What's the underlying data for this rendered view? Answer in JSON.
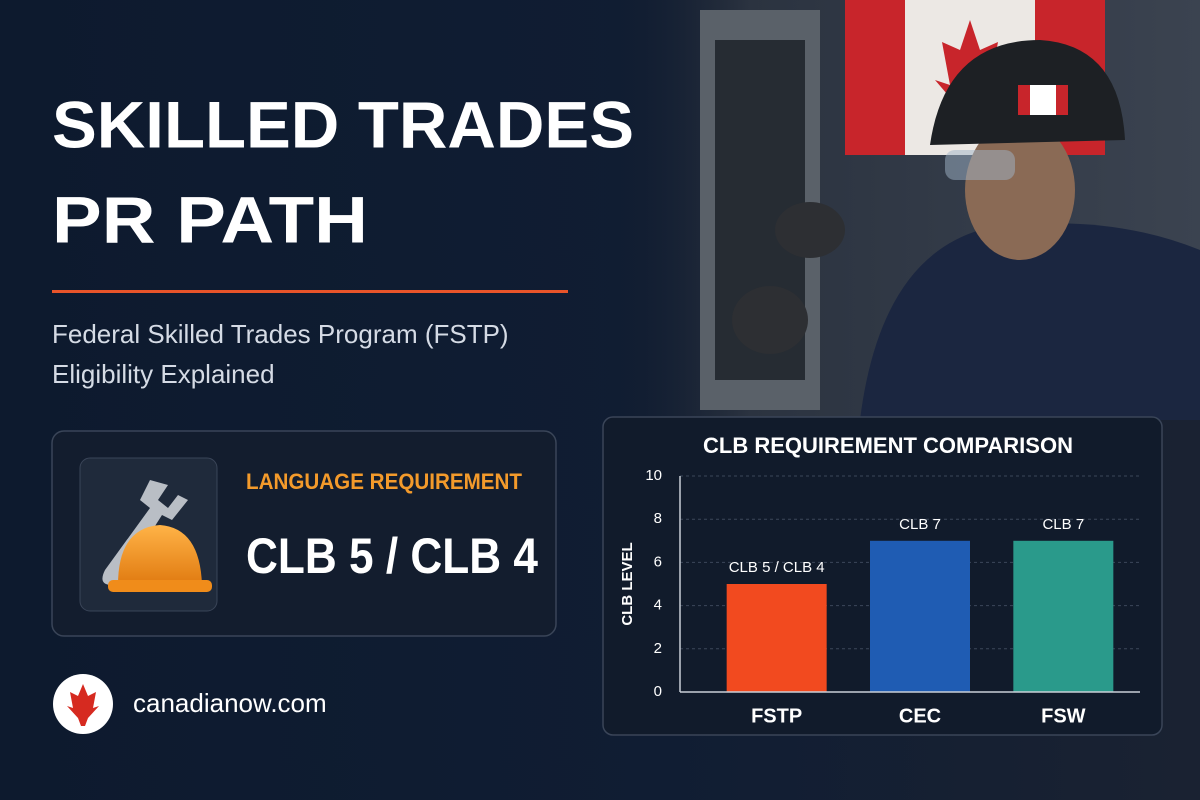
{
  "header": {
    "title_lines": [
      "SKILLED TRADES",
      "PR PATH"
    ],
    "subtitle_lines": [
      "Federal Skilled Trades Program (FSTP)",
      "Eligibility Explained"
    ]
  },
  "requirement_card": {
    "label": "LANGUAGE REQUIREMENT",
    "value": "CLB 5 / CLB 4"
  },
  "website": "canadianow.com",
  "chart_data": {
    "type": "bar",
    "title": "CLB REQUIREMENT COMPARISON",
    "y_label": "CLB LEVEL",
    "categories": [
      "FSTP",
      "CEC",
      "FSW"
    ],
    "values": [
      5,
      7,
      7
    ],
    "value_labels": [
      "CLB 5 / CLB 4",
      "CLB 7",
      "CLB 7"
    ],
    "colors": [
      "#f24a1f",
      "#1f5cb3",
      "#2a9a8b"
    ],
    "ylim": [
      0,
      10
    ],
    "yticks": [
      0,
      2,
      4,
      6,
      8,
      10
    ],
    "grid": true
  }
}
